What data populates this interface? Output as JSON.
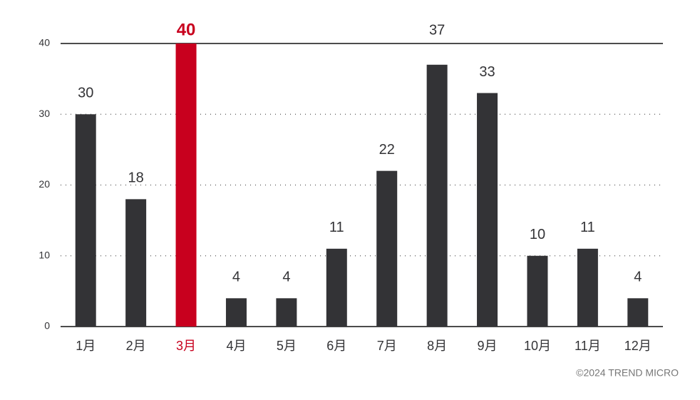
{
  "chart_data": {
    "type": "bar",
    "categories": [
      "1月",
      "2月",
      "3月",
      "4月",
      "5月",
      "6月",
      "7月",
      "8月",
      "9月",
      "10月",
      "11月",
      "12月"
    ],
    "values": [
      30,
      18,
      40,
      4,
      4,
      11,
      22,
      37,
      33,
      10,
      11,
      4
    ],
    "colors": [
      "#333336",
      "#333336",
      "#c8001e",
      "#333336",
      "#333336",
      "#333336",
      "#333336",
      "#333336",
      "#333336",
      "#333336",
      "#333336",
      "#333336"
    ],
    "highlight_color": "#c8001e",
    "ylim": [
      0,
      40
    ],
    "yticks": [
      0,
      10,
      20,
      30,
      40
    ],
    "grid": true,
    "source": "©2024 TREND MICRO"
  }
}
